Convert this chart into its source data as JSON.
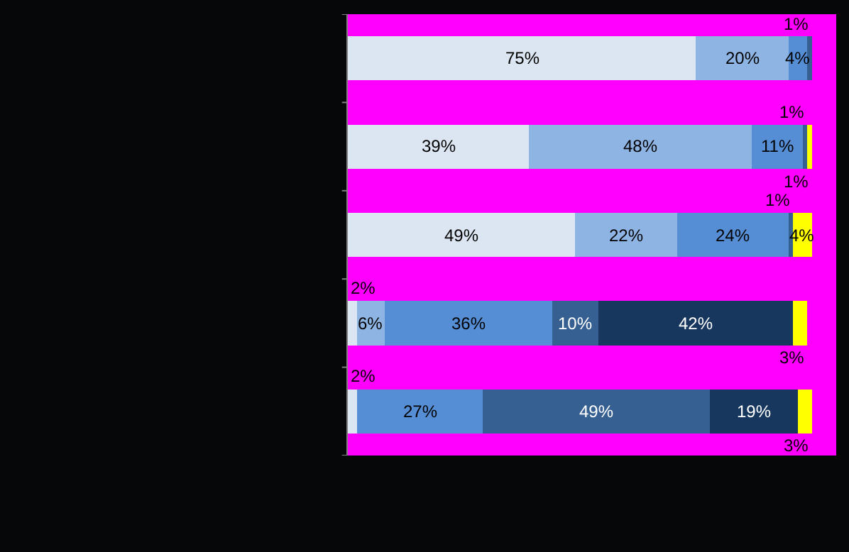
{
  "chart_data": {
    "type": "bar",
    "orientation": "horizontal",
    "stacked": true,
    "categories": [
      null,
      null,
      null,
      null,
      null
    ],
    "series": [
      {
        "color": "#dce6f2",
        "values": [
          75,
          39,
          49,
          2,
          2
        ],
        "value_labels": [
          "75%",
          "39%",
          "49%",
          "2%",
          "2%"
        ]
      },
      {
        "color": "#8eb4e3",
        "values": [
          20,
          48,
          22,
          6,
          0
        ],
        "value_labels": [
          "20%",
          "48%",
          "22%",
          "6%",
          null
        ]
      },
      {
        "color": "#558ed5",
        "values": [
          4,
          11,
          24,
          36,
          27
        ],
        "value_labels": [
          "4%",
          "11%",
          "24%",
          "36%",
          "27%"
        ]
      },
      {
        "color": "#376092",
        "values": [
          1,
          1,
          1,
          10,
          49
        ],
        "value_labels": [
          "1%",
          "1%",
          "1%",
          "10%",
          "49%"
        ]
      },
      {
        "color": "#17375e",
        "values": [
          0,
          0,
          0,
          42,
          19
        ],
        "value_labels": [
          null,
          null,
          null,
          "42%",
          "19%"
        ]
      },
      {
        "color": "#ffff00",
        "values": [
          0,
          1,
          4,
          3,
          3
        ],
        "value_labels": [
          null,
          "1%",
          "4%",
          "3%",
          "3%"
        ]
      }
    ],
    "tick_labels": false,
    "grid": false
  }
}
